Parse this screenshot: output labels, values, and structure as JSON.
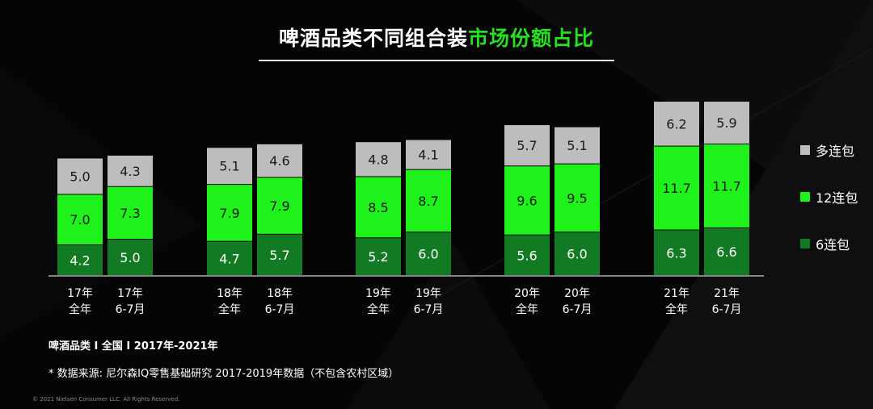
{
  "title": {
    "text": "啤酒品类不同组合装",
    "highlight": "市场份额占比"
  },
  "colors": {
    "background": "#050505",
    "accent": "#27e021",
    "multi_pack": "#bdbdbd",
    "pack12": "#1ff21a",
    "pack6": "#127a22"
  },
  "chart_data": {
    "type": "bar",
    "stacked": true,
    "categories": [
      {
        "line1": "17年",
        "line2": "全年"
      },
      {
        "line1": "17年",
        "line2": "6-7月"
      },
      {
        "line1": "18年",
        "line2": "全年"
      },
      {
        "line1": "18年",
        "line2": "6-7月"
      },
      {
        "line1": "19年",
        "line2": "全年"
      },
      {
        "line1": "19年",
        "line2": "6-7月"
      },
      {
        "line1": "20年",
        "line2": "全年"
      },
      {
        "line1": "20年",
        "line2": "6-7月"
      },
      {
        "line1": "21年",
        "line2": "全年"
      },
      {
        "line1": "21年",
        "line2": "6-7月"
      }
    ],
    "series": [
      {
        "name": "6连包",
        "color": "#127a22",
        "values": [
          4.2,
          5.0,
          4.7,
          5.7,
          5.2,
          6.0,
          5.6,
          6.0,
          6.3,
          6.6
        ]
      },
      {
        "name": "12连包",
        "color": "#1ff21a",
        "values": [
          7.0,
          7.3,
          7.9,
          7.9,
          8.5,
          8.7,
          9.6,
          9.5,
          11.7,
          11.7
        ]
      },
      {
        "name": "多连包",
        "color": "#bdbdbd",
        "values": [
          5.0,
          4.3,
          5.1,
          4.6,
          4.8,
          4.1,
          5.7,
          5.1,
          6.2,
          5.9
        ]
      }
    ],
    "legend_position": "right",
    "grid": false
  },
  "legend": [
    {
      "label": "多连包",
      "color": "#bdbdbd"
    },
    {
      "label": "12连包",
      "color": "#1ff21a"
    },
    {
      "label": "6连包",
      "color": "#127a22"
    }
  ],
  "notes": {
    "scope": "啤酒品类 I 全国 I 2017年-2021年",
    "source": "* 数据来源: 尼尔森IQ零售基础研究 2017-2019年数据（不包含农村区域）"
  },
  "copyright": "© 2021 Nielsen Consumer LLC. All Rights Reserved."
}
